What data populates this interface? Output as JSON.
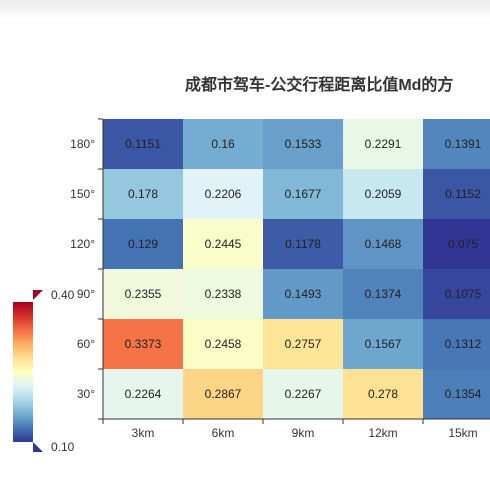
{
  "chart_data": {
    "type": "heatmap",
    "title": "成都市驾车-公交行程距离比值Md的方",
    "x_categories": [
      "3km",
      "6km",
      "9km",
      "12km",
      "15km"
    ],
    "y_categories": [
      "30°",
      "60°",
      "90°",
      "120°",
      "150°",
      "180°"
    ],
    "rows": {
      "180°": [
        "0.1151",
        "0.16",
        "0.1533",
        "0.2291",
        "0.1391"
      ],
      "150°": [
        "0.178",
        "0.2206",
        "0.1677",
        "0.2059",
        "0.1152"
      ],
      "120°": [
        "0.129",
        "0.2445",
        "0.1178",
        "0.1468",
        "0.075"
      ],
      "90°": [
        "0.2355",
        "0.2338",
        "0.1493",
        "0.1374",
        "0.1075"
      ],
      "60°": [
        "0.3373",
        "0.2458",
        "0.2757",
        "0.1567",
        "0.1312"
      ],
      "30°": [
        "0.2264",
        "0.2867",
        "0.2267",
        "0.278",
        "0.1354"
      ]
    },
    "row_order": [
      "180°",
      "150°",
      "120°",
      "90°",
      "60°",
      "30°"
    ],
    "visual_map": {
      "min": 0.1,
      "max": 0.4,
      "min_label": "0.10",
      "max_label": "0.40",
      "colors": [
        "#313695",
        "#4575b4",
        "#74add1",
        "#abd9e9",
        "#e0f3f8",
        "#ffffbf",
        "#fee090",
        "#fdae61",
        "#f46d43",
        "#d73027",
        "#a50026"
      ]
    }
  }
}
